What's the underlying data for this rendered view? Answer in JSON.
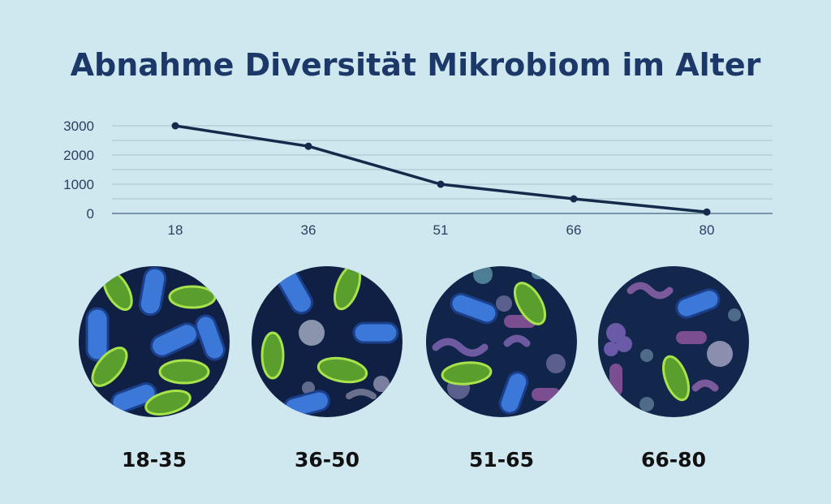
{
  "chart_data": {
    "type": "line",
    "title": "Abnahme Diversität Mikrobiom im Alter",
    "xlabel": "",
    "ylabel": "",
    "x": [
      "18",
      "36",
      "51",
      "66",
      "80"
    ],
    "series": [
      {
        "values": [
          3000,
          2300,
          1000,
          500,
          50
        ]
      }
    ],
    "yticks": [
      "0",
      "1000",
      "2000",
      "3000"
    ],
    "ylim": [
      0,
      3000
    ],
    "grid": true,
    "colors": {
      "line": "#142a4a",
      "grid": "#a9c1cd",
      "background": "#cfe7ee"
    }
  },
  "age_groups": [
    {
      "label": "18-35",
      "image": "microbiome-high-diversity"
    },
    {
      "label": "36-50",
      "image": "microbiome-medium-high-diversity"
    },
    {
      "label": "51-65",
      "image": "microbiome-medium-diversity"
    },
    {
      "label": "66-80",
      "image": "microbiome-low-diversity"
    }
  ]
}
